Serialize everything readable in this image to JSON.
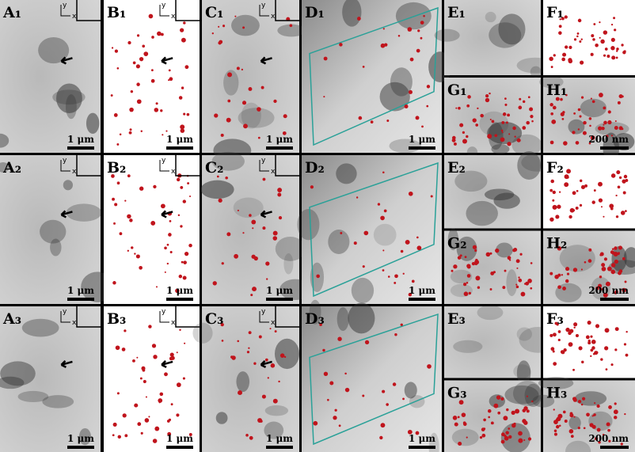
{
  "axes": {
    "x": "x",
    "y": "y"
  },
  "rows": [
    {
      "panels": [
        {
          "label": "A₁",
          "scale": "1 μm"
        },
        {
          "label": "B₁",
          "scale": "1 μm"
        },
        {
          "label": "C₁",
          "scale": "1 μm"
        },
        {
          "label": "D₁",
          "scale": "1 μm"
        },
        {
          "label": "E₁"
        },
        {
          "label": "F₁"
        },
        {
          "label": "G₁"
        },
        {
          "label": "H₁",
          "scale": "200 nm"
        }
      ]
    },
    {
      "panels": [
        {
          "label": "A₂",
          "scale": "1 μm"
        },
        {
          "label": "B₂",
          "scale": "1 μm"
        },
        {
          "label": "C₂",
          "scale": "1 μm"
        },
        {
          "label": "D₂",
          "scale": "1 μm"
        },
        {
          "label": "E₂"
        },
        {
          "label": "F₂"
        },
        {
          "label": "G₂"
        },
        {
          "label": "H₂",
          "scale": "200 nm"
        }
      ]
    },
    {
      "panels": [
        {
          "label": "A₃",
          "scale": "1 μm"
        },
        {
          "label": "B₃",
          "scale": "1 μm"
        },
        {
          "label": "C₃",
          "scale": "1 μm"
        },
        {
          "label": "D₃",
          "scale": "1 μm"
        },
        {
          "label": "E₃"
        },
        {
          "label": "F₃"
        },
        {
          "label": "G₃"
        },
        {
          "label": "H₃",
          "scale": "200 nm"
        }
      ]
    }
  ]
}
